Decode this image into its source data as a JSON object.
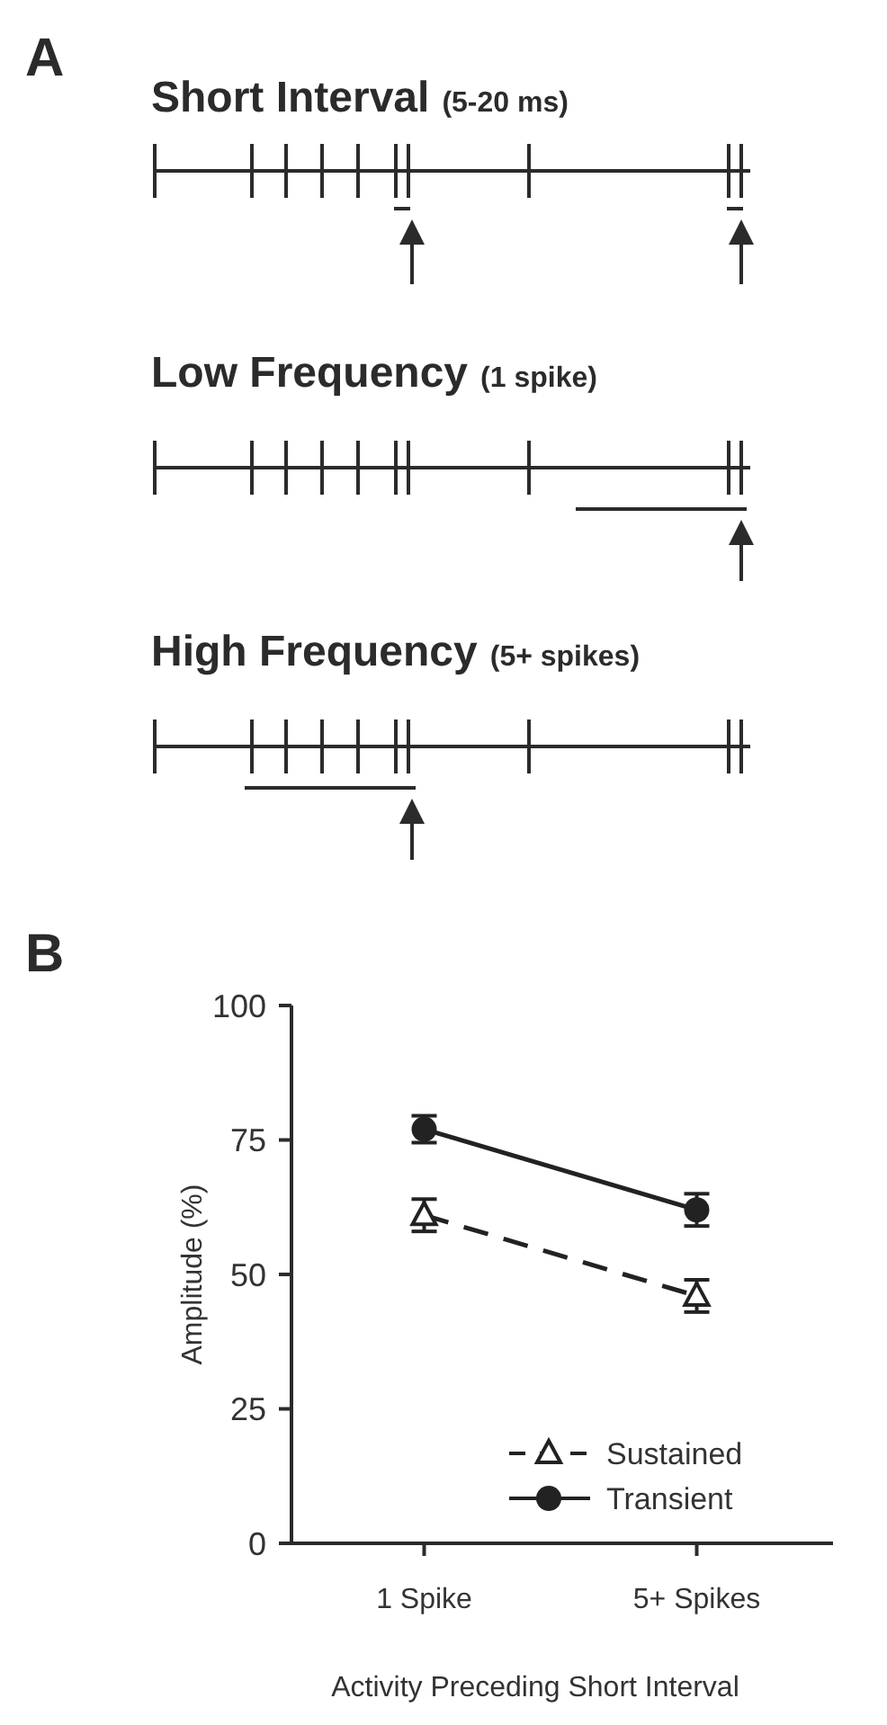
{
  "chart_data": [
    {
      "type": "other",
      "title": "A",
      "annotations": [
        "Short Interval",
        "(5-20 ms)",
        "Low Frequency",
        "(1 spike)",
        "High Frequency",
        "(5+ spikes)"
      ]
    },
    {
      "type": "line",
      "title": "B",
      "xlabel": "Activity Preceding Short Interval",
      "ylabel": "Amplitude (%)",
      "categories": [
        "1 Spike",
        "5+ Spikes"
      ],
      "ylim": [
        0,
        100
      ],
      "yticks": [
        0,
        25,
        50,
        75,
        100
      ],
      "grid": false,
      "legend": "bottom right",
      "series": [
        {
          "name": "Sustained",
          "color": "#222222",
          "values": [
            61,
            46
          ],
          "errors": [
            3,
            3
          ],
          "marker": "triangle",
          "line_style": "dashed"
        },
        {
          "name": "Transient",
          "color": "#222222",
          "values": [
            77,
            62
          ],
          "errors": [
            2.5,
            3
          ],
          "marker": "circle",
          "line_style": "solid"
        }
      ]
    }
  ]
}
